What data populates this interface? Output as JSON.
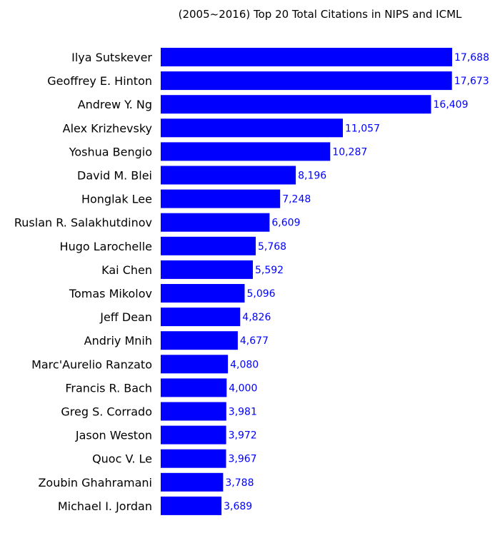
{
  "chart_data": {
    "type": "bar",
    "orientation": "horizontal",
    "title": "(2005~2016) Top 20 Total Citations in NIPS and ICML",
    "xlabel": "",
    "ylabel": "",
    "grid": false,
    "bar_color": "#0000ff",
    "label_color": "#0000ff",
    "xlim": [
      0,
      17688
    ],
    "categories": [
      "Ilya Sutskever",
      "Geoffrey E. Hinton",
      "Andrew Y. Ng",
      "Alex Krizhevsky",
      "Yoshua Bengio",
      "David M. Blei",
      "Honglak Lee",
      "Ruslan R. Salakhutdinov",
      "Hugo Larochelle",
      "Kai Chen",
      "Tomas Mikolov",
      "Jeff Dean",
      "Andriy Mnih",
      "Marc'Aurelio Ranzato",
      "Francis R. Bach",
      "Greg S. Corrado",
      "Jason Weston",
      "Quoc V. Le",
      "Zoubin Ghahramani",
      "Michael I. Jordan"
    ],
    "values": [
      17688,
      17673,
      16409,
      11057,
      10287,
      8196,
      7248,
      6609,
      5768,
      5592,
      5096,
      4826,
      4677,
      4080,
      4000,
      3981,
      3972,
      3967,
      3788,
      3689
    ],
    "value_labels": [
      "17,688",
      "17,673",
      "16,409",
      "11,057",
      "10,287",
      "8,196",
      "7,248",
      "6,609",
      "5,768",
      "5,592",
      "5,096",
      "4,826",
      "4,677",
      "4,080",
      "4,000",
      "3,981",
      "3,972",
      "3,967",
      "3,788",
      "3,689"
    ]
  }
}
